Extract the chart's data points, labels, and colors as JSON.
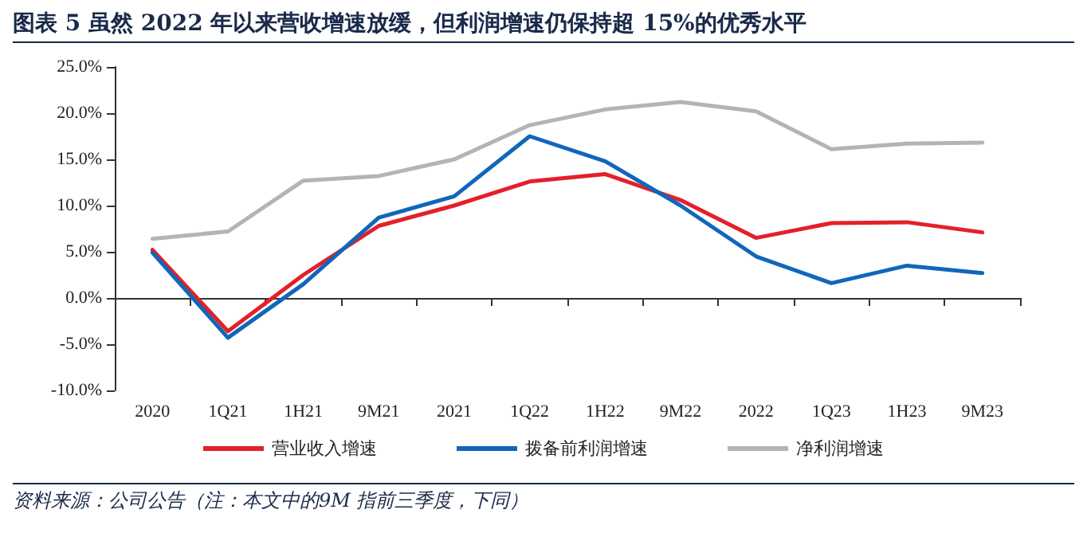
{
  "chart_data": {
    "type": "line",
    "title": "图表 5 虽然 2022 年以来营收增速放缓，但利润增速仍保持超 15%的优秀水平",
    "categories": [
      "2020",
      "1Q21",
      "1H21",
      "9M21",
      "2021",
      "1Q22",
      "1H22",
      "9M22",
      "2022",
      "1Q23",
      "1H23",
      "9M23"
    ],
    "series": [
      {
        "name": "营业收入增速",
        "color": "#e3202a",
        "values": [
          5.2,
          -3.6,
          2.5,
          7.8,
          10.0,
          12.6,
          13.4,
          10.6,
          6.5,
          8.1,
          8.2,
          7.1
        ]
      },
      {
        "name": "拨备前利润增速",
        "color": "#1166bb",
        "values": [
          4.9,
          -4.3,
          1.5,
          8.7,
          11.0,
          17.5,
          14.8,
          10.0,
          4.5,
          1.6,
          3.5,
          2.7
        ]
      },
      {
        "name": "净利润增速",
        "color": "#b4b4b4",
        "values": [
          6.4,
          7.2,
          12.7,
          13.2,
          15.0,
          18.7,
          20.4,
          21.2,
          20.2,
          16.1,
          16.7,
          16.8
        ]
      }
    ],
    "ylim": [
      -10,
      25
    ],
    "yticks": [
      {
        "value": -10,
        "label": "-10.0%"
      },
      {
        "value": -5,
        "label": "-5.0%"
      },
      {
        "value": 0,
        "label": "0.0%"
      },
      {
        "value": 5,
        "label": "5.0%"
      },
      {
        "value": 10,
        "label": "10.0%"
      },
      {
        "value": 15,
        "label": "15.0%"
      },
      {
        "value": 20,
        "label": "20.0%"
      },
      {
        "value": 25,
        "label": "25.0%"
      }
    ],
    "legend": "bottom",
    "marker": "none",
    "line_style": "solid",
    "annotations": [
      "资料来源：公司公告（注：本文中的9M 指前三季度，下同）"
    ]
  }
}
